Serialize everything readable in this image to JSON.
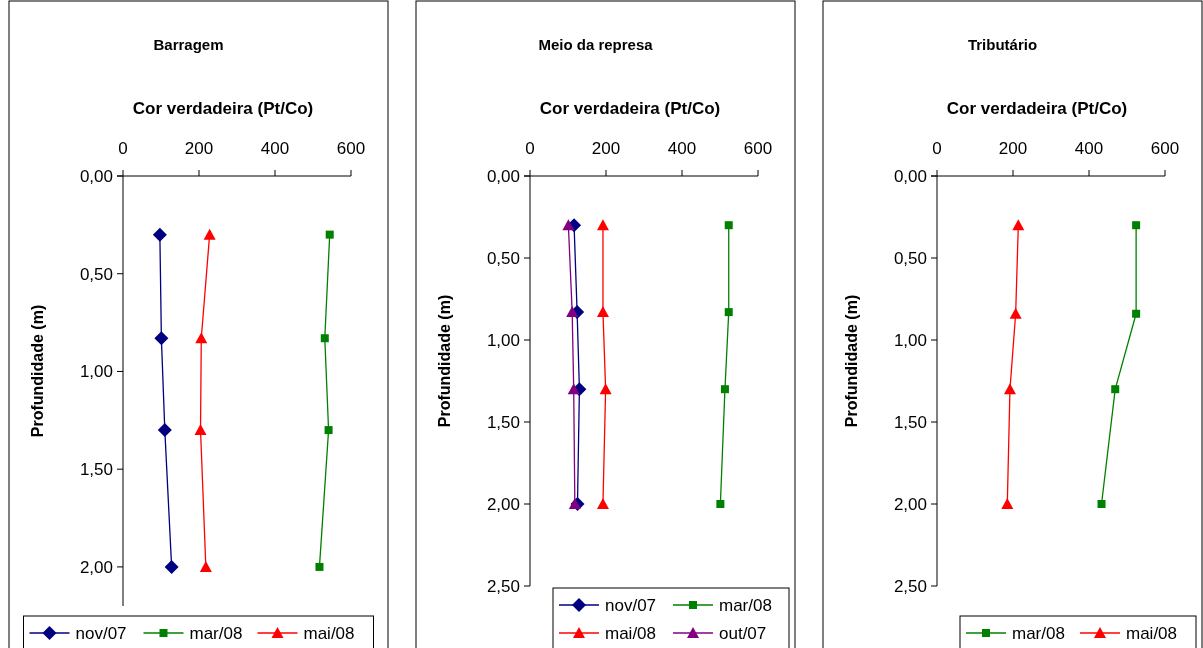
{
  "chart_data": [
    {
      "type": "line",
      "title": "Barragem",
      "xlabel": "Cor verdadeira (Pt/Co)",
      "ylabel": "Profundidade (m)",
      "xlim": [
        0,
        600
      ],
      "xticks": [
        0,
        200,
        400,
        600
      ],
      "ylim": [
        2.2,
        0
      ],
      "yticks": [
        {
          "value": 0,
          "label": "0,00"
        },
        {
          "value": 0.5,
          "label": "0,50"
        },
        {
          "value": 1,
          "label": "1,00"
        },
        {
          "value": 1.5,
          "label": "1,50"
        },
        {
          "value": 2,
          "label": "2,00"
        }
      ],
      "legend": "bottom",
      "series": [
        {
          "name": "nov/07",
          "color": "#000080",
          "marker": "diamond",
          "x": [
            97,
            101,
            110,
            128
          ],
          "values": [
            0.3,
            0.83,
            1.3,
            2.0
          ]
        },
        {
          "name": "mar/08",
          "color": "#008000",
          "marker": "square",
          "x": [
            544,
            531,
            541,
            517
          ],
          "values": [
            0.3,
            0.83,
            1.3,
            2.0
          ]
        },
        {
          "name": "mai/08",
          "color": "#ff0000",
          "marker": "triangle",
          "x": [
            228,
            206,
            204,
            218
          ],
          "values": [
            0.3,
            0.83,
            1.3,
            2.0
          ]
        }
      ]
    },
    {
      "type": "line",
      "title": "Meio da represa",
      "xlabel": "Cor verdadeira (Pt/Co)",
      "ylabel": "Profundidade (m)",
      "xlim": [
        0,
        600
      ],
      "xticks": [
        0,
        200,
        400,
        600
      ],
      "ylim": [
        2.5,
        0
      ],
      "yticks": [
        {
          "value": 0,
          "label": "0,00"
        },
        {
          "value": 0.5,
          "label": "0,50"
        },
        {
          "value": 1,
          "label": "1,00"
        },
        {
          "value": 1.5,
          "label": "1,50"
        },
        {
          "value": 2,
          "label": "2,00"
        },
        {
          "value": 2.5,
          "label": "2,50"
        }
      ],
      "legend": "bottom right",
      "series": [
        {
          "name": "nov/07",
          "color": "#000080",
          "marker": "diamond",
          "x": [
            116,
            124,
            130,
            125
          ],
          "values": [
            0.3,
            0.83,
            1.3,
            2.0
          ]
        },
        {
          "name": "mar/08",
          "color": "#008000",
          "marker": "square",
          "x": [
            523,
            523,
            513,
            501
          ],
          "values": [
            0.3,
            0.83,
            1.3,
            2.0
          ]
        },
        {
          "name": "mai/08",
          "color": "#ff0000",
          "marker": "triangle",
          "x": [
            192,
            192,
            199,
            192
          ],
          "values": [
            0.3,
            0.83,
            1.3,
            2.0
          ]
        },
        {
          "name": "out/07",
          "color": "#800080",
          "marker": "triangle",
          "x": [
            101,
            111,
            115,
            118
          ],
          "values": [
            0.3,
            0.83,
            1.3,
            2.0
          ]
        }
      ]
    },
    {
      "type": "line",
      "title": "Tributário",
      "xlabel": "Cor verdadeira (Pt/Co)",
      "ylabel": "Profundidade (m)",
      "xlim": [
        0,
        600
      ],
      "xticks": [
        0,
        200,
        400,
        600
      ],
      "ylim": [
        2.5,
        0
      ],
      "yticks": [
        {
          "value": 0,
          "label": "0,00"
        },
        {
          "value": 0.5,
          "label": "0,50"
        },
        {
          "value": 1,
          "label": "1,00"
        },
        {
          "value": 1.5,
          "label": "1,50"
        },
        {
          "value": 2,
          "label": "2,00"
        },
        {
          "value": 2.5,
          "label": "2,50"
        }
      ],
      "legend": "bottom right",
      "series": [
        {
          "name": "mar/08",
          "color": "#008000",
          "marker": "square",
          "x": [
            524,
            524,
            469,
            433
          ],
          "values": [
            0.3,
            0.84,
            1.3,
            2.0
          ]
        },
        {
          "name": "mai/08",
          "color": "#ff0000",
          "marker": "triangle",
          "x": [
            214,
            207,
            192,
            185
          ],
          "values": [
            0.3,
            0.84,
            1.3,
            2.0
          ]
        }
      ]
    }
  ]
}
